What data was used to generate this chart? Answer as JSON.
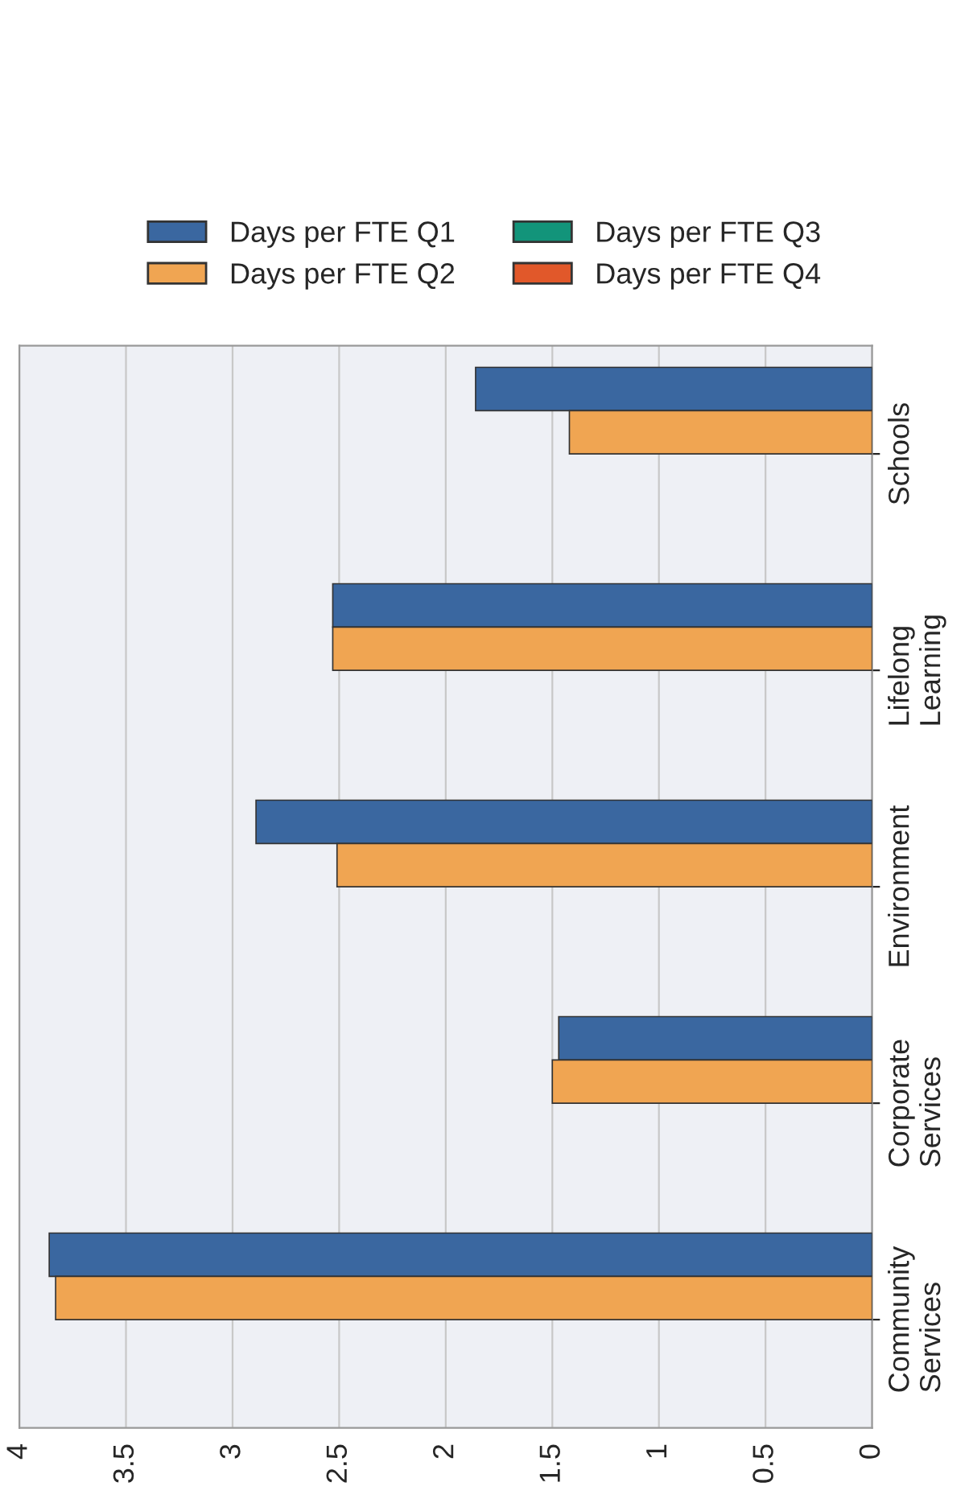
{
  "chart_data": {
    "type": "bar",
    "orientation": "horizontal",
    "categories": [
      "Schools",
      "Lifelong\nLearning",
      "Environment",
      "Corporate\nServices",
      "Community\nServices"
    ],
    "series": [
      {
        "name": "Days per FTE Q1",
        "color": "#3a67a0",
        "values": [
          1.86,
          2.53,
          2.89,
          1.47,
          3.86
        ]
      },
      {
        "name": "Days per FTE Q2",
        "color": "#f0a552",
        "values": [
          1.42,
          2.53,
          2.51,
          1.5,
          3.83
        ]
      },
      {
        "name": "Days per FTE Q3",
        "color": "#12947a",
        "values": [
          null,
          null,
          null,
          null,
          null
        ]
      },
      {
        "name": "Days per FTE Q4",
        "color": "#e1582a",
        "values": [
          null,
          null,
          null,
          null,
          null
        ]
      }
    ],
    "xlim": [
      4,
      0
    ],
    "xticks": [
      4,
      3.5,
      3,
      2.5,
      2,
      1.5,
      1,
      0.5,
      0
    ],
    "grid": "x",
    "legend": "top"
  }
}
